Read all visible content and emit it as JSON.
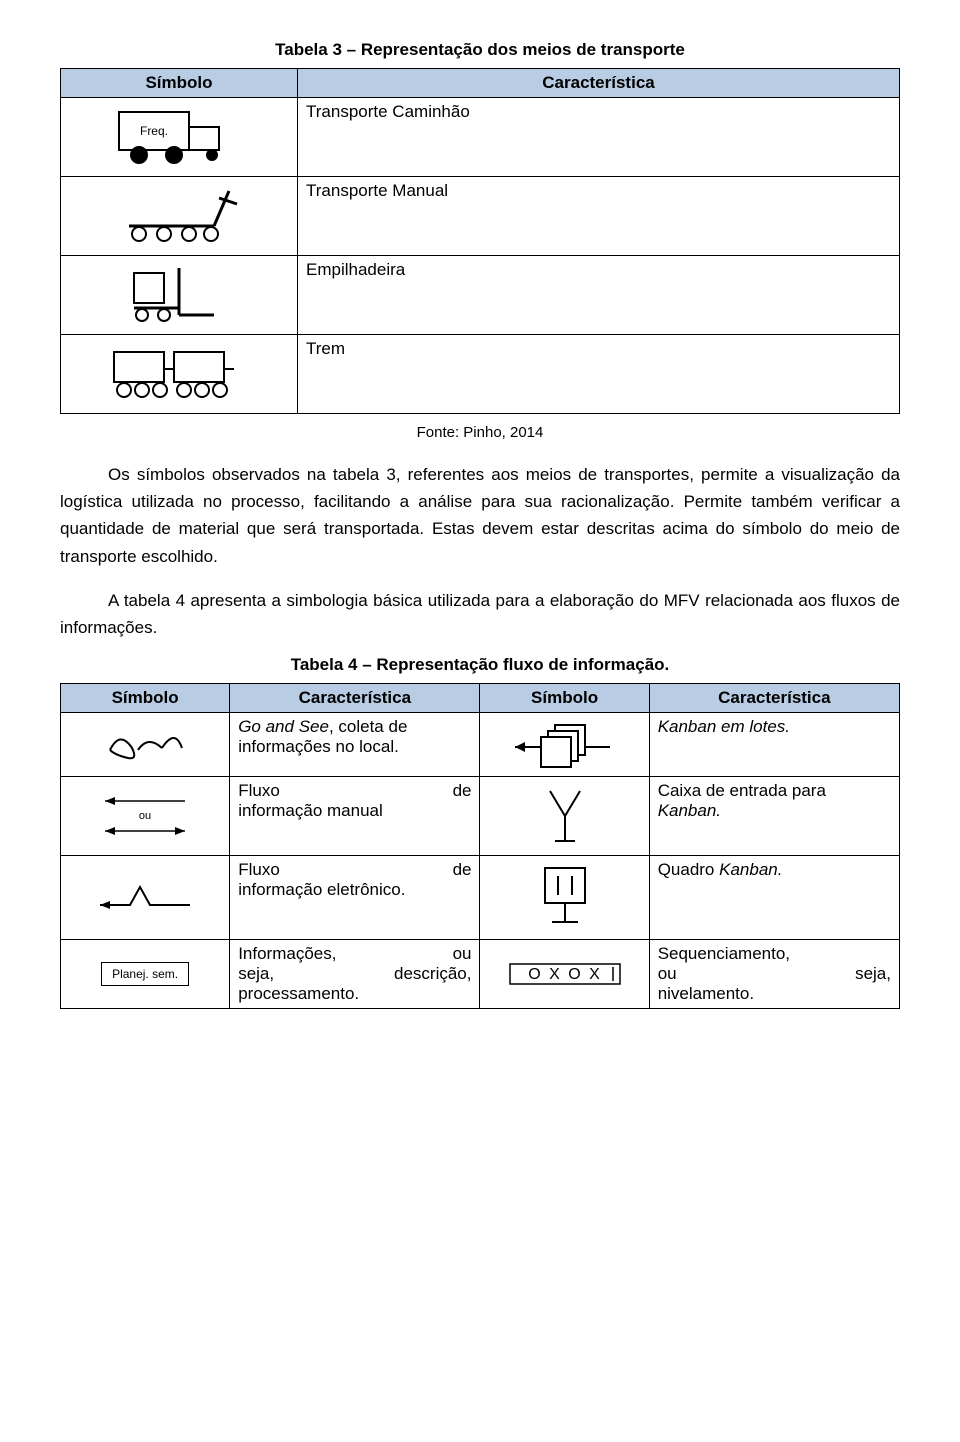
{
  "table3": {
    "title": "Tabela 3 – Representação dos meios de transporte",
    "headers": {
      "symbol": "Símbolo",
      "char": "Característica"
    },
    "rows": [
      {
        "char": "Transporte Caminhão",
        "truck_label": "Freq."
      },
      {
        "char": "Transporte Manual"
      },
      {
        "char": "Empilhadeira"
      },
      {
        "char": "Trem"
      }
    ],
    "caption": "Fonte: Pinho, 2014"
  },
  "paragraphs": {
    "p1": "Os símbolos observados na tabela 3, referentes aos meios de transportes, permite a visualização da logística utilizada no processo, facilitando  a análise para sua racionalização. Permite também verificar a quantidade de material que será transportada. Estas devem estar descritas acima do símbolo do meio de transporte escolhido.",
    "p2": "A tabela 4 apresenta a simbologia básica utilizada para a elaboração do MFV relacionada aos fluxos de informações."
  },
  "table4": {
    "title": "Tabela 4 – Representação fluxo de informação.",
    "headers": {
      "symbol": "Símbolo",
      "char": "Característica"
    },
    "rows": [
      {
        "char_left_html": "<span class='italic'>Go and See</span>, coleta de informações no local.",
        "char_right_html": "<span class='italic'>Kanban em lotes.</span>"
      },
      {
        "ou_label": "ou",
        "char_left_html": "<div class='row-just'><span>Fluxo</span><span>de</span></div>informação manual",
        "char_right_html": "Caixa de entrada para <span class='italic'>Kanban.</span>"
      },
      {
        "char_left_html": "<div class='row-just'><span>Fluxo</span><span>de</span></div>informação eletrônico.",
        "char_right_html": "Quadro <span class='italic'>Kanban.</span>"
      },
      {
        "planej_label": "Planej. sem.",
        "char_left_html": "<div class='row-just'><span>Informações,</span><span>ou</span></div><div class='row-just'><span>seja,</span><span>descrição,</span></div>processamento.",
        "char_right_html": "<div class='row-just' style='padding-right:0'><span>Sequenciamento,</span><span></span></div><div class='row-just'><span>ou</span><span>seja,</span></div>nivelamento.",
        "oxo_label": "O X O X"
      }
    ]
  },
  "colors": {
    "header_bg": "#b8cce4",
    "border": "#000000",
    "text": "#000000",
    "background": "#ffffff"
  }
}
